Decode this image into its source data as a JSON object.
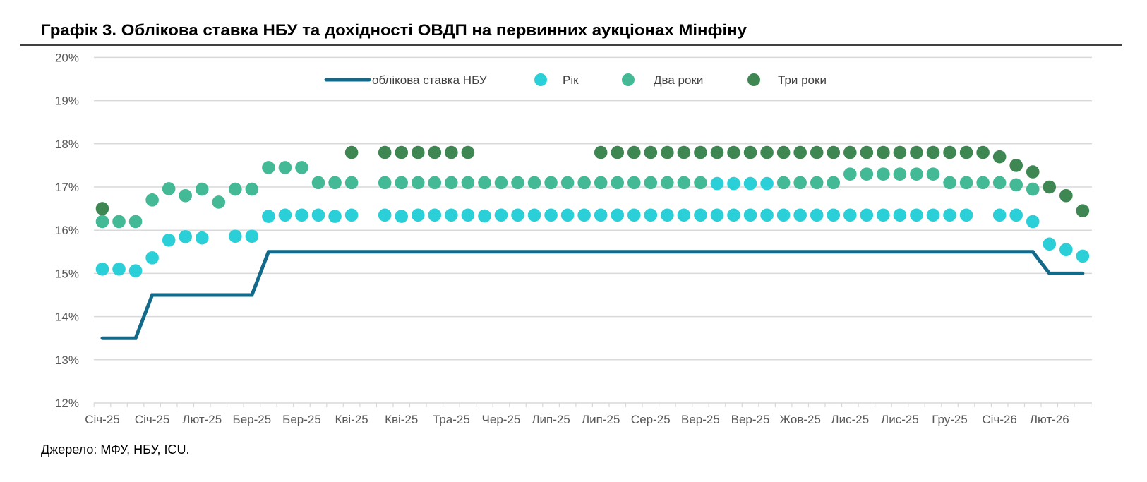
{
  "chart_data": {
    "type": "line+scatter",
    "title": "Графік 3. Облікова ставка НБУ та дохідності ОВДП на первинних аукціонах Мінфіну",
    "source": "Джерело: МФУ, НБУ, ICU.",
    "xlabel": "",
    "ylabel": "",
    "ylim": [
      12,
      20
    ],
    "yticks": [
      "12%",
      "13%",
      "14%",
      "15%",
      "16%",
      "17%",
      "18%",
      "19%",
      "20%"
    ],
    "ytick_values": [
      12,
      13,
      14,
      15,
      16,
      17,
      18,
      19,
      20
    ],
    "grid": true,
    "legend_position": "top-center",
    "n_points": 60,
    "xtick_every": 3,
    "xtick_labels": [
      "Січ-25",
      "Січ-25",
      "Лют-25",
      "Бер-25",
      "Бер-25",
      "Кві-25",
      "Кві-25",
      "Тра-25",
      "Чер-25",
      "Лип-25",
      "Лип-25",
      "Сер-25",
      "Вер-25",
      "Вер-25",
      "Жов-25",
      "Лис-25",
      "Лис-25",
      "Гру-25",
      "Січ-26",
      "Лют-26"
    ],
    "series": [
      {
        "name": "облікова ставка НБУ",
        "kind": "line",
        "color": "#13698a",
        "values": [
          13.5,
          13.5,
          13.5,
          14.5,
          14.5,
          14.5,
          14.5,
          14.5,
          14.5,
          14.5,
          15.5,
          15.5,
          15.5,
          15.5,
          15.5,
          15.5,
          15.5,
          15.5,
          15.5,
          15.5,
          15.5,
          15.5,
          15.5,
          15.5,
          15.5,
          15.5,
          15.5,
          15.5,
          15.5,
          15.5,
          15.5,
          15.5,
          15.5,
          15.5,
          15.5,
          15.5,
          15.5,
          15.5,
          15.5,
          15.5,
          15.5,
          15.5,
          15.5,
          15.5,
          15.5,
          15.5,
          15.5,
          15.5,
          15.5,
          15.5,
          15.5,
          15.5,
          15.5,
          15.5,
          15.5,
          15.5,
          15.5,
          15.0,
          15.0,
          15.0
        ]
      },
      {
        "name": "Рік",
        "kind": "scatter",
        "color": "#2bcfd8",
        "values": [
          15.1,
          15.1,
          15.06,
          15.36,
          15.77,
          15.85,
          15.82,
          null,
          15.86,
          15.86,
          16.32,
          16.35,
          16.35,
          16.35,
          16.32,
          16.35,
          null,
          16.35,
          16.32,
          16.35,
          16.35,
          16.35,
          16.35,
          16.33,
          16.35,
          16.35,
          16.35,
          16.35,
          16.35,
          16.35,
          16.35,
          16.35,
          16.35,
          16.35,
          16.35,
          16.35,
          16.35,
          16.35,
          16.35,
          16.35,
          16.35,
          16.35,
          16.35,
          16.35,
          16.35,
          16.35,
          16.35,
          16.35,
          16.35,
          16.35,
          16.35,
          16.35,
          16.35,
          null,
          16.35,
          16.35,
          16.2,
          15.68,
          15.55,
          15.4
        ]
      },
      {
        "name": "Два роки",
        "kind": "scatter",
        "color": "#44b995",
        "highlight_indices": [
          37,
          38,
          39,
          40
        ],
        "highlight_color": "#2bcfd8",
        "values": [
          16.2,
          16.2,
          16.2,
          16.7,
          16.96,
          16.8,
          16.95,
          16.65,
          16.95,
          16.95,
          17.45,
          17.45,
          17.45,
          17.1,
          17.1,
          17.1,
          null,
          17.1,
          17.1,
          17.1,
          17.1,
          17.1,
          17.1,
          17.1,
          17.1,
          17.1,
          17.1,
          17.1,
          17.1,
          17.1,
          17.1,
          17.1,
          17.1,
          17.1,
          17.1,
          17.1,
          17.1,
          17.08,
          17.08,
          17.08,
          17.08,
          17.1,
          17.1,
          17.1,
          17.1,
          17.3,
          17.3,
          17.3,
          17.3,
          17.3,
          17.3,
          17.1,
          17.1,
          17.1,
          17.1,
          17.05,
          16.95,
          null,
          null,
          null
        ]
      },
      {
        "name": "Три роки",
        "kind": "scatter",
        "color": "#3e8752",
        "values": [
          16.5,
          null,
          null,
          null,
          null,
          null,
          null,
          null,
          null,
          null,
          null,
          null,
          null,
          null,
          null,
          17.8,
          null,
          17.8,
          17.8,
          17.8,
          17.8,
          17.8,
          17.8,
          null,
          null,
          null,
          null,
          null,
          null,
          null,
          17.8,
          17.8,
          17.8,
          17.8,
          17.8,
          17.8,
          17.8,
          17.8,
          17.8,
          17.8,
          17.8,
          17.8,
          17.8,
          17.8,
          17.8,
          17.8,
          17.8,
          17.8,
          17.8,
          17.8,
          17.8,
          17.8,
          17.8,
          17.8,
          17.7,
          17.5,
          17.35,
          17.0,
          16.8,
          16.45
        ]
      }
    ]
  }
}
